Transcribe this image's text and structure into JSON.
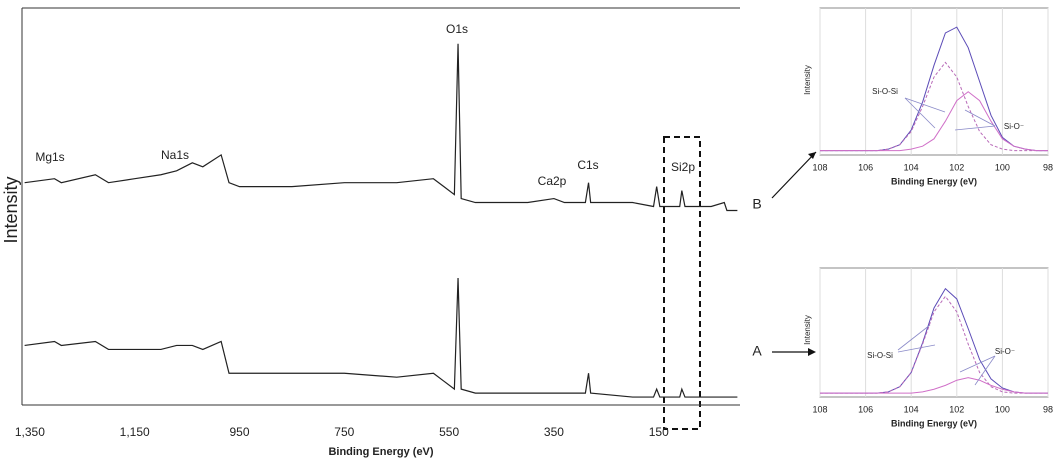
{
  "chart_data": [
    {
      "type": "line",
      "xlabel": "Binding  Energy (eV)",
      "ylabel": "Intensity",
      "x": [
        1360,
        1303,
        1290,
        1225,
        1200,
        1150,
        1100,
        1070,
        1040,
        1020,
        985,
        970,
        950,
        850,
        750,
        650,
        580,
        560,
        540,
        533,
        527,
        500,
        450,
        400,
        350,
        330,
        300,
        290,
        284,
        280,
        200,
        160,
        154,
        148,
        110,
        106,
        100,
        50,
        25,
        20,
        0
      ],
      "series": [
        {
          "name": "B",
          "color": "#222222",
          "values": [
            56,
            57,
            56,
            58,
            56,
            57,
            58,
            59,
            61,
            60,
            63,
            56,
            55,
            55,
            56,
            56,
            57,
            55,
            53,
            91,
            52,
            51,
            51,
            51,
            52,
            51,
            51,
            51,
            56,
            51,
            51,
            50,
            55,
            50,
            50,
            54,
            50,
            50,
            51,
            49,
            49
          ]
        },
        {
          "name": "A",
          "color": "#222222",
          "values": [
            15,
            16,
            15,
            16,
            14,
            14,
            14,
            15,
            15,
            14,
            16,
            8,
            8,
            8,
            8,
            7,
            8,
            6,
            4,
            32,
            4,
            3,
            3,
            3,
            3,
            3,
            3,
            3,
            8,
            3,
            2,
            2,
            4,
            2,
            2,
            4,
            2,
            2,
            2,
            2,
            2
          ]
        }
      ],
      "xlim": [
        1365,
        -5
      ],
      "xticks": [
        {
          "value": 1350,
          "label": "1,350"
        },
        {
          "value": 1150,
          "label": "1,150"
        },
        950,
        750,
        550,
        350,
        150
      ],
      "ylim": [
        0,
        100
      ],
      "grid": false,
      "annotations": [
        "O1s",
        "Mg1s",
        "Na1s",
        "Ca2p",
        "C1s",
        "Si2p"
      ]
    },
    {
      "type": "line",
      "xlabel": "Binding Energy (eV)",
      "ylabel": "Intensity",
      "x": [
        108,
        107.5,
        107,
        106.5,
        106,
        105.5,
        105,
        104.5,
        104,
        103.5,
        103,
        102.5,
        102,
        101.5,
        101,
        100.5,
        100,
        99.5,
        99,
        98.5,
        98
      ],
      "series": [
        {
          "color": "#5b4bb7",
          "dashed": false,
          "values": [
            3,
            3,
            3,
            3,
            3,
            3,
            4,
            7,
            17,
            36,
            61,
            83,
            87,
            73,
            50,
            27,
            12,
            6,
            4,
            3,
            3
          ]
        },
        {
          "color": "#b86ab8",
          "dashed": true,
          "values": [
            3,
            3,
            3,
            3,
            3,
            3,
            4,
            7,
            16,
            33,
            53,
            63,
            53,
            33,
            16,
            7,
            4,
            3,
            3,
            3,
            3
          ]
        },
        {
          "color": "#d070c8",
          "dashed": false,
          "values": [
            3,
            3,
            3,
            3,
            3,
            3,
            3,
            3,
            4,
            6,
            11,
            23,
            37,
            43,
            37,
            23,
            11,
            6,
            4,
            3,
            3
          ]
        }
      ],
      "xlim": [
        108,
        98
      ],
      "xticks": [
        108,
        106,
        104,
        102,
        100,
        98
      ],
      "ylim": [
        0,
        100
      ],
      "grid": true,
      "annotations": [
        "Si-O-Si",
        "Si-O⁻"
      ]
    },
    {
      "type": "line",
      "xlabel": "Binding Energy (eV)",
      "ylabel": "Intensity",
      "x": [
        108,
        107.5,
        107,
        106.5,
        106,
        105.5,
        105,
        104.5,
        104,
        103.5,
        103,
        102.5,
        102,
        101.5,
        101,
        100.5,
        100,
        99.5,
        99,
        98.5,
        98
      ],
      "series": [
        {
          "color": "#5b4bb7",
          "dashed": false,
          "values": [
            3,
            3,
            3,
            3,
            3,
            3,
            4,
            8,
            19,
            42,
            69,
            84,
            76,
            53,
            29,
            14,
            7,
            4,
            3,
            3,
            3
          ]
        },
        {
          "color": "#b86ab8",
          "dashed": true,
          "values": [
            3,
            3,
            3,
            3,
            3,
            3,
            4,
            8,
            19,
            41,
            66,
            78,
            66,
            41,
            19,
            8,
            4,
            3,
            3,
            3,
            3
          ]
        },
        {
          "color": "#d070c8",
          "dashed": false,
          "values": [
            3,
            3,
            3,
            3,
            3,
            3,
            3,
            3,
            3,
            4,
            6,
            9,
            13,
            15,
            13,
            9,
            6,
            4,
            3,
            3,
            3
          ]
        }
      ],
      "xlim": [
        108,
        98
      ],
      "xticks": [
        108,
        106,
        104,
        102,
        100,
        98
      ],
      "ylim": [
        0,
        100
      ],
      "grid": true,
      "annotations": [
        "Si-O-Si",
        "Si-O⁻"
      ]
    }
  ]
}
